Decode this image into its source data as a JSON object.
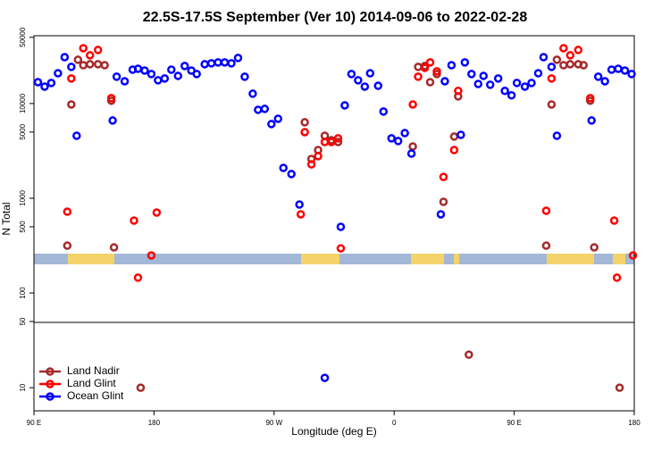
{
  "chart_data": {
    "type": "scatter",
    "title": "22.5S-17.5S September (Ver 10)   2014-09-06 to 2022-02-28",
    "x_label": "Longitude (deg E)",
    "y_label": "N Total",
    "xlim": [
      90,
      540
    ],
    "ylim": [
      5.7,
      52000
    ],
    "y_scale": "log",
    "xticks": [
      {
        "value": 90,
        "label": "90 E"
      },
      180,
      {
        "value": 270,
        "label": "90 W"
      },
      {
        "value": 360,
        "label": "0"
      },
      {
        "value": 450,
        "label": "90 E"
      },
      {
        "value": 540,
        "label": "180"
      }
    ],
    "yticks": [
      10,
      50,
      100,
      500,
      1000,
      5000,
      10000,
      50000
    ],
    "legend": "lower left",
    "series": [
      {
        "name": "Land Nadir",
        "color": "#a52a2a",
        "x": [
          115,
          118,
          123,
          127,
          132,
          138,
          143,
          148,
          150,
          170,
          293,
          298,
          303,
          308,
          313,
          318,
          374,
          378,
          383,
          387,
          392,
          397,
          405,
          408,
          416,
          474,
          478,
          482,
          487,
          492,
          498,
          502,
          507,
          510,
          529
        ],
        "values": [
          316,
          9780,
          29000,
          25400,
          26000,
          26000,
          25400,
          10700,
          303,
          10,
          6340,
          2600,
          3230,
          4570,
          4100,
          3930,
          3520,
          24400,
          24900,
          16800,
          20500,
          917,
          4480,
          11900,
          22.3,
          316,
          9780,
          29000,
          25400,
          26000,
          26000,
          25400,
          10700,
          303,
          10
        ]
      },
      {
        "name": "Land Glint",
        "color": "#ff0000",
        "x": [
          115,
          118,
          127,
          132,
          138,
          148,
          165,
          168,
          178,
          182,
          290,
          293,
          298,
          303,
          308,
          313,
          318,
          320,
          374,
          378,
          383,
          387,
          392,
          397,
          405,
          408,
          474,
          478,
          487,
          492,
          498,
          507,
          525,
          527,
          539
        ],
        "values": [
          722,
          18400,
          38400,
          32300,
          36800,
          11400,
          581,
          145,
          249,
          706,
          677,
          4990,
          2280,
          2780,
          3930,
          3930,
          4290,
          296,
          9780,
          19200,
          23800,
          27200,
          21900,
          1680,
          3230,
          13600,
          738,
          18400,
          38400,
          32300,
          36800,
          11400,
          581,
          145,
          249
        ]
      },
      {
        "name": "Ocean Glint",
        "color": "#0000ff",
        "x": [
          93,
          98,
          103,
          108,
          113,
          118,
          122,
          149,
          152,
          158,
          164,
          168,
          173,
          178,
          183,
          188,
          193,
          198,
          203,
          208,
          212,
          218,
          223,
          228,
          233,
          238,
          243,
          248,
          254,
          258,
          263,
          268,
          273,
          277,
          283,
          289,
          308,
          320,
          323,
          328,
          333,
          338,
          342,
          348,
          352,
          358,
          363,
          368,
          373,
          395,
          398,
          403,
          410,
          413,
          418,
          423,
          427,
          432,
          438,
          443,
          448,
          452,
          458,
          463,
          468,
          472,
          478,
          482,
          508,
          513,
          518,
          523,
          528,
          533,
          538
        ],
        "values": [
          16800,
          15100,
          16500,
          20900,
          30900,
          24400,
          4570,
          6620,
          19200,
          17200,
          22800,
          23300,
          22300,
          20500,
          17600,
          18400,
          22800,
          19600,
          24900,
          22300,
          20500,
          26000,
          26600,
          27200,
          27200,
          26600,
          30300,
          19200,
          12700,
          8590,
          8780,
          6070,
          6910,
          2090,
          1800,
          859,
          12.7,
          499,
          9570,
          20500,
          17600,
          15100,
          20900,
          15400,
          8230,
          4290,
          4020,
          4880,
          2960,
          677,
          17200,
          25400,
          4670,
          27200,
          20500,
          16100,
          19600,
          15800,
          18400,
          13600,
          12200,
          16500,
          15100,
          16500,
          20900,
          30900,
          24400,
          4570,
          6620,
          19200,
          17200,
          22800,
          23300,
          22300,
          20500
        ]
      }
    ]
  }
}
